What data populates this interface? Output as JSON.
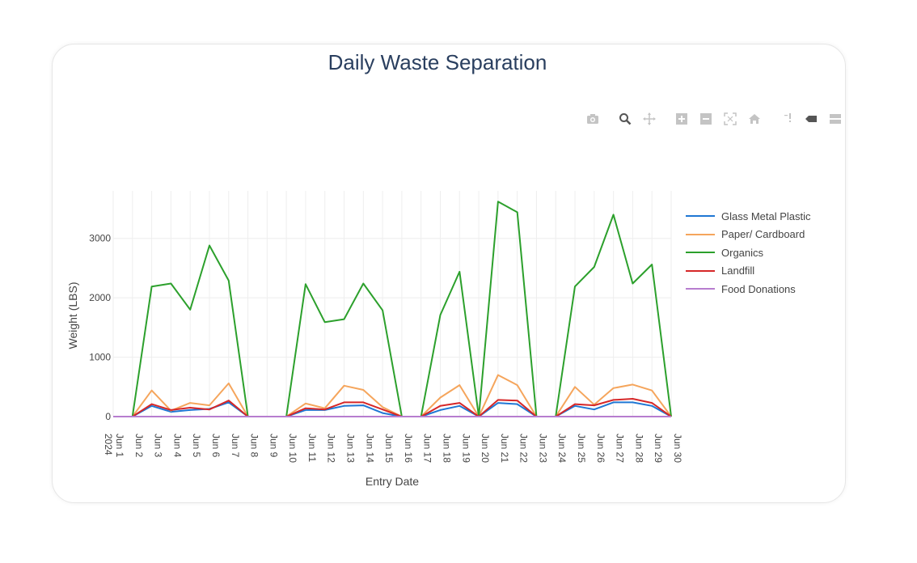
{
  "chart_data": {
    "type": "line",
    "title": "Daily Waste Separation",
    "xlabel": "Entry Date",
    "ylabel": "Weight (LBS)",
    "ylim": [
      0,
      3800
    ],
    "yticks": [
      0,
      1000,
      2000,
      3000
    ],
    "ytick_labels": [
      "0",
      "1000",
      "2000",
      "3000"
    ],
    "grid": true,
    "legend_position": "right",
    "categories": [
      "Jun 1\n2024",
      "Jun 2",
      "Jun 3",
      "Jun 4",
      "Jun 5",
      "Jun 6",
      "Jun 7",
      "Jun 8",
      "Jun 9",
      "Jun 10",
      "Jun 11",
      "Jun 12",
      "Jun 13",
      "Jun 14",
      "Jun 15",
      "Jun 16",
      "Jun 17",
      "Jun 18",
      "Jun 19",
      "Jun 20",
      "Jun 21",
      "Jun 22",
      "Jun 23",
      "Jun 24",
      "Jun 25",
      "Jun 26",
      "Jun 27",
      "Jun 28",
      "Jun 29",
      "Jun 30"
    ],
    "x_tick_labels": [
      "Jun 1",
      "Jun 2",
      "Jun 3",
      "Jun 4",
      "Jun 5",
      "Jun 6",
      "Jun 7",
      "Jun 8",
      "Jun 9",
      "Jun 10",
      "Jun 11",
      "Jun 12",
      "Jun 13",
      "Jun 14",
      "Jun 15",
      "Jun 16",
      "Jun 17",
      "Jun 18",
      "Jun 19",
      "Jun 20",
      "Jun 21",
      "Jun 22",
      "Jun 23",
      "Jun 24",
      "Jun 25",
      "Jun 26",
      "Jun 27",
      "Jun 28",
      "Jun 29",
      "Jun 30"
    ],
    "x_year_label": "2024",
    "series": [
      {
        "name": "Glass Metal Plastic",
        "color": "#1f77d4",
        "values": [
          0,
          0,
          180,
          80,
          110,
          130,
          240,
          0,
          0,
          0,
          110,
          110,
          180,
          190,
          60,
          0,
          0,
          110,
          180,
          0,
          230,
          210,
          0,
          0,
          180,
          120,
          240,
          240,
          180,
          0
        ]
      },
      {
        "name": "Paper/ Cardboard",
        "color": "#f5a55c",
        "values": [
          0,
          0,
          440,
          100,
          230,
          190,
          560,
          0,
          0,
          0,
          220,
          140,
          520,
          450,
          160,
          0,
          0,
          320,
          530,
          0,
          700,
          530,
          0,
          0,
          500,
          200,
          480,
          540,
          440,
          0
        ]
      },
      {
        "name": "Organics",
        "color": "#2ca02c",
        "values": [
          0,
          0,
          2190,
          2240,
          1800,
          2880,
          2290,
          0,
          0,
          0,
          2230,
          1590,
          1640,
          2240,
          1790,
          0,
          0,
          1710,
          2440,
          0,
          3620,
          3440,
          0,
          0,
          2190,
          2520,
          3400,
          2240,
          2560,
          0
        ]
      },
      {
        "name": "Landfill",
        "color": "#d62728",
        "values": [
          0,
          0,
          210,
          110,
          150,
          120,
          270,
          0,
          0,
          0,
          140,
          120,
          240,
          240,
          120,
          0,
          0,
          180,
          230,
          0,
          280,
          270,
          0,
          0,
          210,
          190,
          280,
          300,
          230,
          0
        ]
      },
      {
        "name": "Food Donations",
        "color": "#b77dcf",
        "values": [
          0,
          0,
          0,
          0,
          0,
          0,
          0,
          0,
          0,
          0,
          0,
          0,
          0,
          0,
          0,
          0,
          0,
          0,
          0,
          0,
          0,
          0,
          0,
          0,
          0,
          0,
          0,
          0,
          0,
          0
        ]
      }
    ]
  },
  "modebar": {
    "icons": [
      "camera-icon",
      "zoom-icon",
      "pan-icon",
      "zoom-in-icon",
      "zoom-out-icon",
      "autoscale-icon",
      "reset-axes-icon",
      "spike-lines-icon",
      "hover-closest-icon",
      "hover-compare-icon"
    ]
  }
}
